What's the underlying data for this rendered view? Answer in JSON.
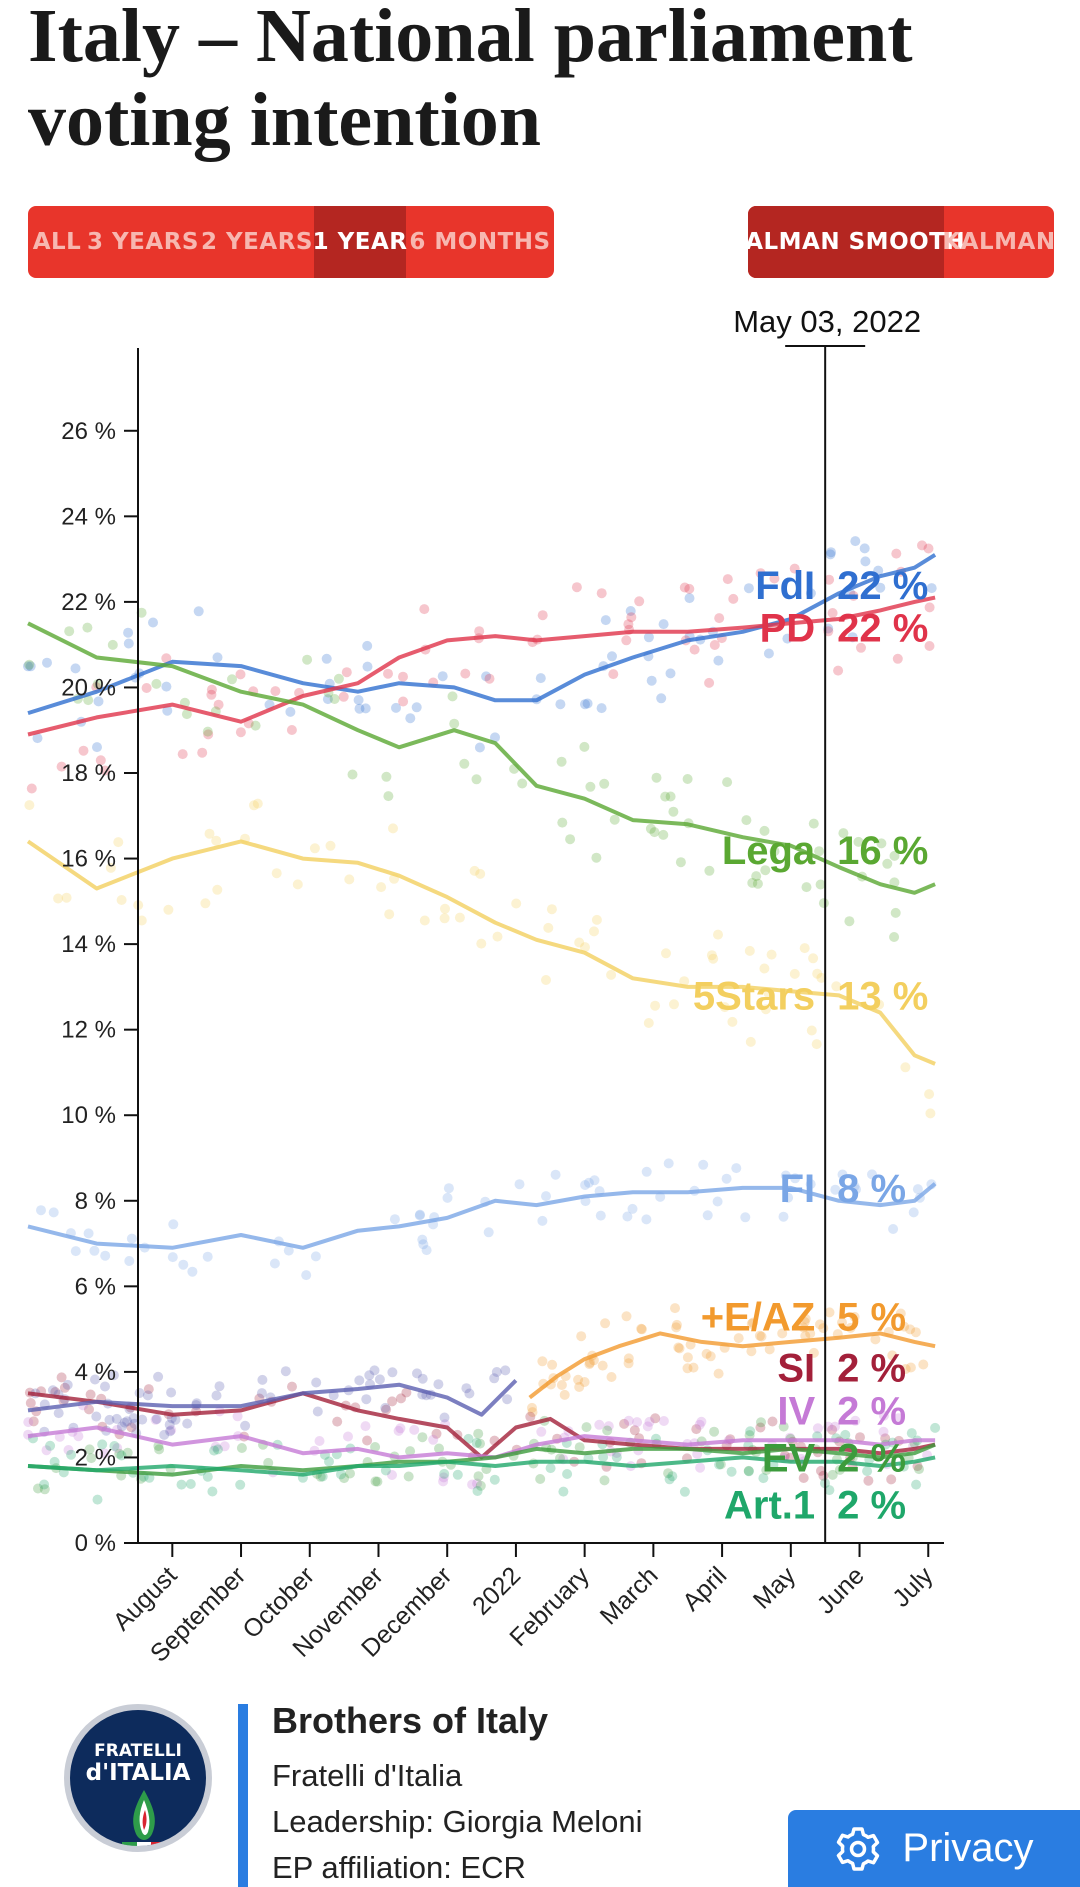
{
  "page": {
    "title": "Italy – National parliament voting intention"
  },
  "range_buttons": [
    {
      "label": "ALL",
      "active": false
    },
    {
      "label": "3 YEARS",
      "active": false
    },
    {
      "label": "2 YEARS",
      "active": false
    },
    {
      "label": "1 YEAR",
      "active": true
    },
    {
      "label": "6 MONTHS",
      "active": false
    }
  ],
  "smoothing_buttons": [
    {
      "label": "KALMAN SMOOTH",
      "active": true
    },
    {
      "label": "KALMAN",
      "active": false
    }
  ],
  "chart_data": {
    "type": "line",
    "hover_date": "May 03, 2022",
    "hover_x": 10.0,
    "ylim": [
      0,
      27
    ],
    "xlim": [
      -1.6,
      11.7
    ],
    "y_ticks": [
      0,
      2,
      4,
      6,
      8,
      10,
      12,
      14,
      16,
      18,
      20,
      22,
      24,
      26
    ],
    "y_tick_suffix": " %",
    "x_ticks": [
      {
        "label": "August",
        "x": 0.5
      },
      {
        "label": "September",
        "x": 1.5
      },
      {
        "label": "October",
        "x": 2.5
      },
      {
        "label": "November",
        "x": 3.5
      },
      {
        "label": "December",
        "x": 4.5
      },
      {
        "label": "2022",
        "x": 5.5
      },
      {
        "label": "February",
        "x": 6.5
      },
      {
        "label": "March",
        "x": 7.5
      },
      {
        "label": "April",
        "x": 8.5
      },
      {
        "label": "May",
        "x": 9.5
      },
      {
        "label": "June",
        "x": 10.5
      },
      {
        "label": "July",
        "x": 11.5
      }
    ],
    "grid": false,
    "series": [
      {
        "name": "FdI",
        "color": "#2f6fd0",
        "value_label": "22 %",
        "x": [
          -1.6,
          -0.6,
          0.5,
          1.5,
          2.4,
          3.2,
          3.8,
          4.6,
          5.2,
          5.8,
          6.5,
          7.2,
          8.0,
          8.8,
          9.5,
          10.2,
          10.8,
          11.3,
          11.6
        ],
        "y": [
          19.4,
          19.9,
          20.6,
          20.5,
          20.1,
          19.9,
          20.1,
          20.0,
          19.7,
          19.7,
          20.3,
          20.7,
          21.1,
          21.3,
          21.6,
          22.2,
          22.6,
          22.8,
          23.1
        ]
      },
      {
        "name": "PD",
        "color": "#e0334a",
        "value_label": "22 %",
        "x": [
          -1.6,
          -0.6,
          0.5,
          1.5,
          2.4,
          3.2,
          3.8,
          4.5,
          5.2,
          5.8,
          6.5,
          7.2,
          8.0,
          8.8,
          9.5,
          10.2,
          10.8,
          11.3,
          11.6
        ],
        "y": [
          18.9,
          19.3,
          19.6,
          19.2,
          19.8,
          20.1,
          20.7,
          21.1,
          21.2,
          21.1,
          21.2,
          21.3,
          21.3,
          21.4,
          21.5,
          21.6,
          21.8,
          22.0,
          22.1
        ]
      },
      {
        "name": "Lega",
        "color": "#5aa832",
        "value_label": "16 %",
        "x": [
          -1.6,
          -0.6,
          0.5,
          1.5,
          2.4,
          3.2,
          3.8,
          4.6,
          5.2,
          5.8,
          6.5,
          7.2,
          8.0,
          8.8,
          9.5,
          10.2,
          10.8,
          11.3,
          11.6
        ],
        "y": [
          21.5,
          20.7,
          20.5,
          19.9,
          19.6,
          19.0,
          18.6,
          19.0,
          18.7,
          17.7,
          17.4,
          16.9,
          16.8,
          16.5,
          16.3,
          15.8,
          15.4,
          15.2,
          15.4
        ]
      },
      {
        "name": "5Stars",
        "color": "#f3cf5f",
        "value_label": "13 %",
        "x": [
          -1.6,
          -0.6,
          0.5,
          1.5,
          2.4,
          3.2,
          3.8,
          4.5,
          5.2,
          5.8,
          6.5,
          7.2,
          8.0,
          8.8,
          9.5,
          10.2,
          10.8,
          11.3,
          11.6
        ],
        "y": [
          16.4,
          15.3,
          16.0,
          16.4,
          16.0,
          15.9,
          15.6,
          15.1,
          14.5,
          14.1,
          13.8,
          13.2,
          13.0,
          13.0,
          12.9,
          12.8,
          12.4,
          11.4,
          11.2
        ]
      },
      {
        "name": "FI",
        "color": "#7aa6e6",
        "value_label": "8 %",
        "x": [
          -1.6,
          -0.6,
          0.5,
          1.5,
          2.4,
          3.2,
          3.8,
          4.5,
          5.2,
          5.8,
          6.5,
          7.2,
          8.0,
          8.8,
          9.5,
          10.2,
          10.8,
          11.3,
          11.6
        ],
        "y": [
          7.4,
          7.0,
          6.9,
          7.2,
          6.9,
          7.3,
          7.4,
          7.6,
          8.0,
          7.9,
          8.1,
          8.2,
          8.2,
          8.3,
          8.3,
          8.0,
          7.9,
          8.0,
          8.4
        ]
      },
      {
        "name": "+E/AZ",
        "color": "#f29a2e",
        "value_label": "5 %",
        "x": [
          5.7,
          6.1,
          6.5,
          7.0,
          7.6,
          8.2,
          8.8,
          9.5,
          10.2,
          10.8,
          11.3,
          11.6
        ],
        "y": [
          3.4,
          3.9,
          4.3,
          4.6,
          4.9,
          4.7,
          4.6,
          4.7,
          4.8,
          4.9,
          4.7,
          4.6
        ]
      },
      {
        "name": "SI",
        "color": "#a3203a",
        "value_label": "2 %",
        "x": [
          -1.6,
          -0.6,
          0.5,
          1.5,
          2.4,
          3.2,
          3.8,
          4.5,
          5.0,
          5.5,
          6.0,
          6.5,
          7.2,
          8.0,
          8.8,
          9.5,
          10.2,
          10.8,
          11.3,
          11.6
        ],
        "y": [
          3.5,
          3.3,
          3.0,
          3.1,
          3.5,
          3.1,
          2.9,
          2.7,
          2.0,
          2.7,
          2.9,
          2.4,
          2.3,
          2.2,
          2.2,
          2.2,
          2.2,
          2.1,
          2.2,
          2.3
        ]
      },
      {
        "name": "IV",
        "color": "#c57ad6",
        "value_label": "2 %",
        "x": [
          -1.6,
          -0.6,
          0.5,
          1.5,
          2.4,
          3.2,
          3.8,
          4.5,
          5.2,
          5.8,
          6.5,
          7.2,
          8.0,
          8.8,
          9.5,
          10.2,
          10.8,
          11.3,
          11.6
        ],
        "y": [
          2.5,
          2.7,
          2.3,
          2.5,
          2.1,
          2.2,
          2.0,
          2.1,
          2.0,
          2.3,
          2.5,
          2.4,
          2.3,
          2.4,
          2.4,
          2.4,
          2.3,
          2.4,
          2.4
        ]
      },
      {
        "name": "EV",
        "color": "#3c9b3c",
        "value_label": "2 %",
        "x": [
          -1.6,
          -0.6,
          0.5,
          1.5,
          2.4,
          3.2,
          3.8,
          4.5,
          5.2,
          5.8,
          6.5,
          7.2,
          8.0,
          8.8,
          9.5,
          10.2,
          10.8,
          11.3,
          11.6
        ],
        "y": [
          1.8,
          1.7,
          1.6,
          1.8,
          1.7,
          1.8,
          1.9,
          1.9,
          2.0,
          2.2,
          2.1,
          2.2,
          2.2,
          2.1,
          2.2,
          2.1,
          2.0,
          2.1,
          2.3
        ]
      },
      {
        "name": "Art.1",
        "color": "#1fa76a",
        "value_label": "2 %",
        "x": [
          -1.6,
          -0.6,
          0.5,
          1.5,
          2.4,
          3.2,
          3.8,
          4.5,
          5.2,
          5.8,
          6.5,
          7.2,
          8.0,
          8.8,
          9.5,
          10.2,
          10.8,
          11.3,
          11.6
        ],
        "y": [
          1.8,
          1.7,
          1.8,
          1.7,
          1.6,
          1.8,
          1.8,
          1.9,
          1.8,
          1.9,
          1.9,
          1.8,
          1.9,
          2.0,
          1.9,
          1.9,
          1.8,
          1.9,
          2.0
        ]
      },
      {
        "name": "",
        "color": "#5b5fb0",
        "value_label": "",
        "x": [
          -1.6,
          -0.6,
          0.5,
          1.5,
          2.4,
          3.2,
          3.8,
          4.5,
          5.0,
          5.5
        ],
        "y": [
          3.1,
          3.3,
          3.2,
          3.2,
          3.5,
          3.6,
          3.7,
          3.4,
          3.0,
          3.8
        ]
      }
    ]
  },
  "party_card": {
    "logo_text_line1": "FRATELLI",
    "logo_text_line2": "d'ITALIA",
    "name": "Brothers of Italy",
    "local_name": "Fratelli d'Italia",
    "leadership": "Leadership: Giorgia Meloni",
    "ep_affiliation": "EP affiliation: ECR"
  },
  "privacy": {
    "label": "Privacy",
    "icon": "gear-icon"
  }
}
